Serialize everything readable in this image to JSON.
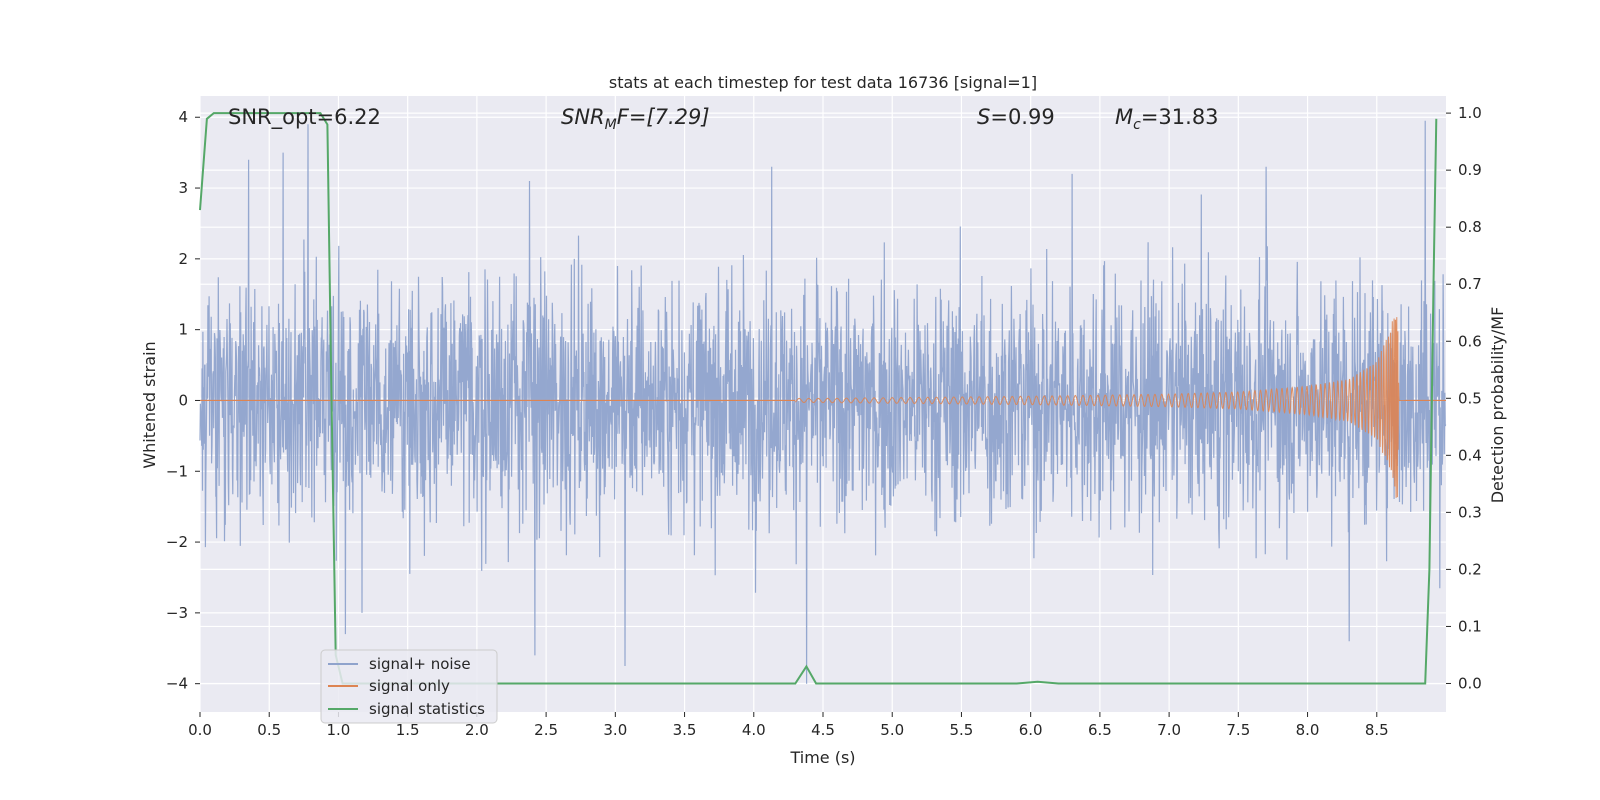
{
  "chart_data": {
    "type": "line",
    "title": "stats at each timestep for test data 16736 [signal=1]",
    "xlabel": "Time (s)",
    "ylabel_left": "Whitened strain",
    "ylabel_right": "Detection probability/MF",
    "xlim": [
      0,
      9
    ],
    "ylim_left": [
      -4.4,
      4.3
    ],
    "ylim_right": [
      -0.05,
      1.03
    ],
    "xticks": [
      0.0,
      0.5,
      1.0,
      1.5,
      2.0,
      2.5,
      3.0,
      3.5,
      4.0,
      4.5,
      5.0,
      5.5,
      6.0,
      6.5,
      7.0,
      7.5,
      8.0,
      8.5
    ],
    "xtick_labels": [
      "0.0",
      "0.5",
      "1.0",
      "1.5",
      "2.0",
      "2.5",
      "3.0",
      "3.5",
      "4.0",
      "4.5",
      "5.0",
      "5.5",
      "6.0",
      "6.5",
      "7.0",
      "7.5",
      "8.0",
      "8.5"
    ],
    "yticks_left": [
      4,
      3,
      2,
      1,
      0,
      -1,
      -2,
      -3,
      -4
    ],
    "ytick_labels_left": [
      "4",
      "3",
      "2",
      "1",
      "0",
      "−1",
      "−2",
      "−3",
      "−4"
    ],
    "yticks_right": [
      1.0,
      0.9,
      0.8,
      0.7,
      0.6,
      0.5,
      0.4,
      0.3,
      0.2,
      0.1,
      0.0
    ],
    "ytick_labels_right": [
      "1.0",
      "0.9",
      "0.8",
      "0.7",
      "0.6",
      "0.5",
      "0.4",
      "0.3",
      "0.2",
      "0.1",
      "0.0"
    ],
    "grid": true,
    "legend_position": "lower-left",
    "annotations": {
      "snr_opt": "SNR_opt=6.22",
      "snr_mf_label": "SNR",
      "snr_mf_sub": "M",
      "snr_mf_rest": "F=[7.29]",
      "s_label": "S",
      "s_value": "=0.99",
      "mc_label": "M",
      "mc_sub": "c",
      "mc_value": "=31.83"
    },
    "series": [
      {
        "name": "signal+ noise",
        "color": "#8fa3cc",
        "axis": "left",
        "x_range": [
          0,
          9
        ],
        "amplitude_typical": 2.0,
        "peak_values": [
          [
            0.35,
            3.4
          ],
          [
            0.6,
            3.5
          ],
          [
            0.78,
            3.9
          ],
          [
            1.05,
            -3.3
          ],
          [
            1.17,
            -3.0
          ],
          [
            2.38,
            3.1
          ],
          [
            2.42,
            -3.6
          ],
          [
            3.07,
            -3.75
          ],
          [
            4.13,
            3.3
          ],
          [
            4.38,
            -4.0
          ],
          [
            6.3,
            3.2
          ],
          [
            7.7,
            3.3
          ],
          [
            8.3,
            -3.4
          ],
          [
            8.85,
            3.95
          ]
        ]
      },
      {
        "name": "signal only",
        "color": "#dd8452",
        "axis": "left",
        "points": [
          [
            0.0,
            0.0
          ],
          [
            4.5,
            0.03
          ],
          [
            6.0,
            0.06
          ],
          [
            7.0,
            0.09
          ],
          [
            7.5,
            0.12
          ],
          [
            8.0,
            0.2
          ],
          [
            8.3,
            0.3
          ],
          [
            8.5,
            0.55
          ],
          [
            8.6,
            1.0
          ],
          [
            8.65,
            1.5
          ],
          [
            8.67,
            -1.4
          ],
          [
            8.7,
            0.0
          ],
          [
            9.0,
            0.0
          ]
        ]
      },
      {
        "name": "signal statistics",
        "color": "#55a868",
        "axis": "right",
        "points": [
          [
            0.0,
            0.83
          ],
          [
            0.05,
            0.99
          ],
          [
            0.1,
            1.0
          ],
          [
            0.3,
            1.0
          ],
          [
            0.6,
            1.0
          ],
          [
            0.87,
            1.0
          ],
          [
            0.92,
            0.98
          ],
          [
            0.95,
            0.5
          ],
          [
            0.98,
            0.05
          ],
          [
            1.03,
            0.0
          ],
          [
            2.0,
            0.0
          ],
          [
            2.5,
            0.0
          ],
          [
            3.0,
            0.0
          ],
          [
            3.5,
            0.0
          ],
          [
            4.0,
            0.0
          ],
          [
            4.3,
            0.0
          ],
          [
            4.38,
            0.03
          ],
          [
            4.45,
            0.0
          ],
          [
            5.0,
            0.0
          ],
          [
            5.5,
            0.0
          ],
          [
            5.9,
            0.0
          ],
          [
            6.05,
            0.003
          ],
          [
            6.2,
            0.0
          ],
          [
            7.0,
            0.0
          ],
          [
            8.0,
            0.0
          ],
          [
            8.85,
            0.0
          ],
          [
            8.88,
            0.2
          ],
          [
            8.91,
            0.7
          ],
          [
            8.93,
            0.99
          ]
        ]
      }
    ]
  }
}
